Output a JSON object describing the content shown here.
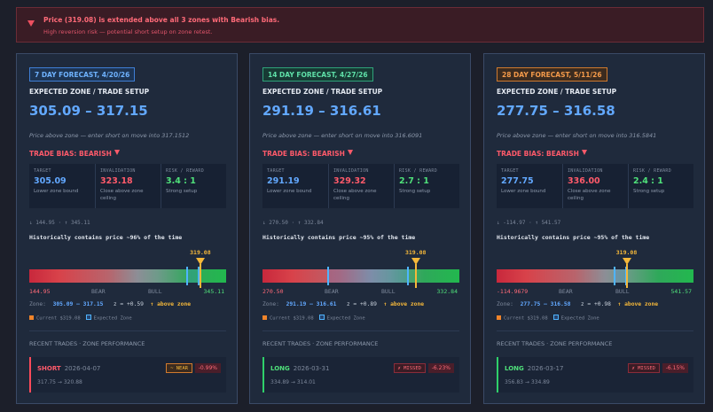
{
  "alert": {
    "title": "Price (319.08) is extended above all 3 zones with Bearish bias.",
    "subtitle": "High reversion risk — potential short setup on zone retest."
  },
  "labels": {
    "expected_zone": "EXPECTED ZONE / TRADE SETUP",
    "trade_bias": "TRADE BIAS: BEARISH",
    "target": "TARGET",
    "invalidation": "INVALIDATION",
    "risk_reward": "RISK / REWARD",
    "bear": "BEAR",
    "bull": "BULL",
    "recent_trades": "RECENT TRADES · ZONE PERFORMANCE",
    "legend_zone": "Expected Zone"
  },
  "colors": {
    "accent_blue": "#62a8ff",
    "bearish": "#ff5a6a",
    "bullish": "#4fe07a",
    "current": "#f5b83a"
  },
  "forecasts": [
    {
      "badge": "7 DAY FORECAST, 4/20/26",
      "zone": "305.09 – 317.15",
      "note": "Price above zone — enter short on move into 317.1512",
      "target": "305.09",
      "target_sub": "Lower zone bound",
      "invalidation": "323.18",
      "invalidation_sub": "Close above zone ceiling",
      "rr": "3.4 : 1",
      "rr_sub": "Strong setup",
      "range_row": "↓ 144.95 · ↑ 345.11",
      "hist": "Historically contains price ~96% of the time",
      "current": "319.08",
      "axis_min": "144.95",
      "axis_max": "345.11",
      "zone_line_prefix": "Zone:",
      "zone_line_range": "305.09 – 317.15",
      "zone_line_sigma": "z = +0.59",
      "zone_line_pos": "↑ above zone",
      "legend_current": "Current $319.08",
      "scale": {
        "min": 144.95,
        "max": 345.11,
        "zone_lo": 305.09,
        "zone_hi": 317.15,
        "current": 319.08
      },
      "trade": {
        "side": "SHORT",
        "date": "2026-04-07",
        "range": "317.75 → 320.88",
        "status": "~ NEAR",
        "pct": "-0.99%"
      }
    },
    {
      "badge": "14 DAY FORECAST, 4/27/26",
      "zone": "291.19 – 316.61",
      "note": "Price above zone — enter short on move into 316.6091",
      "target": "291.19",
      "target_sub": "Lower zone bound",
      "invalidation": "329.32",
      "invalidation_sub": "Close above zone ceiling",
      "rr": "2.7 : 1",
      "rr_sub": "Strong setup",
      "range_row": "↓ 270.50 · ↑ 332.84",
      "hist": "Historically contains price ~95% of the time",
      "current": "319.08",
      "axis_min": "270.50",
      "axis_max": "332.84",
      "zone_line_prefix": "Zone:",
      "zone_line_range": "291.19 – 316.61",
      "zone_line_sigma": "z = +0.89",
      "zone_line_pos": "↑ above zone",
      "legend_current": "Current $319.08",
      "scale": {
        "min": 270.5,
        "max": 332.84,
        "zone_lo": 291.19,
        "zone_hi": 316.61,
        "current": 319.08
      },
      "trade": {
        "side": "LONG",
        "date": "2026-03-31",
        "range": "334.89 → 314.01",
        "status": "✗ MISSED",
        "pct": "-6.23%"
      }
    },
    {
      "badge": "28 DAY FORECAST, 5/11/26",
      "zone": "277.75 – 316.58",
      "note": "Price above zone — enter short on move into 316.5841",
      "target": "277.75",
      "target_sub": "Lower zone bound",
      "invalidation": "336.00",
      "invalidation_sub": "Close above zone ceiling",
      "rr": "2.4 : 1",
      "rr_sub": "Strong setup",
      "range_row": "↓ -114.97 · ↑ 541.57",
      "hist": "Historically contains price ~95% of the time",
      "current": "319.08",
      "axis_min": "-114.9679",
      "axis_max": "541.57",
      "zone_line_prefix": "Zone:",
      "zone_line_range": "277.75 – 316.58",
      "zone_line_sigma": "z = +0.98",
      "zone_line_pos": "↑ above zone",
      "legend_current": "Current $319.08",
      "scale": {
        "min": -114.9679,
        "max": 541.57,
        "zone_lo": 277.75,
        "zone_hi": 316.58,
        "current": 319.08
      },
      "trade": {
        "side": "LONG",
        "date": "2026-03-17",
        "range": "356.83 → 334.89",
        "status": "✗ MISSED",
        "pct": "-6.15%"
      }
    }
  ]
}
